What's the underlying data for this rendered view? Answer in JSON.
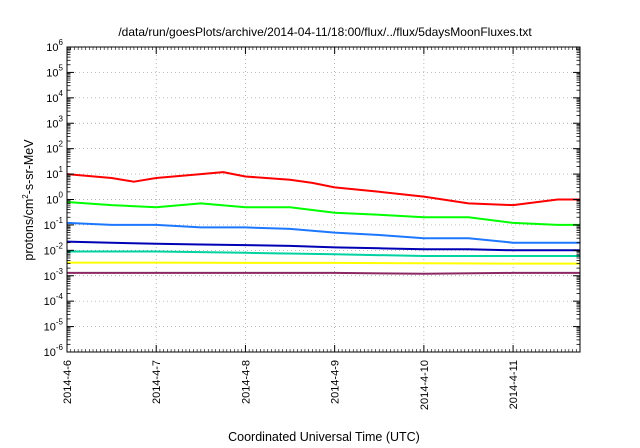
{
  "chart_data": {
    "type": "line",
    "title": "/data/run/goesPlots/archive/2014-04-11/18:00/flux/../flux/5daysMoonFluxes.txt",
    "xlabel": "Coordinated Universal Time (UTC)",
    "ylabel": {
      "base": "protons/cm",
      "sup": "2",
      "tail": "-s-sr-MeV"
    },
    "y_scale": "log",
    "ylim": [
      1e-06,
      1000000.0
    ],
    "y_ticks": [
      {
        "value": -6,
        "label_base": "10",
        "label_exp": "-6"
      },
      {
        "value": -5,
        "label_base": "10",
        "label_exp": "-5"
      },
      {
        "value": -4,
        "label_base": "10",
        "label_exp": "-4"
      },
      {
        "value": -3,
        "label_base": "10",
        "label_exp": "-3"
      },
      {
        "value": -2,
        "label_base": "10",
        "label_exp": "-2"
      },
      {
        "value": -1,
        "label_base": "10",
        "label_exp": "-1"
      },
      {
        "value": 0,
        "label_base": "10",
        "label_exp": "0"
      },
      {
        "value": 1,
        "label_base": "10",
        "label_exp": "1"
      },
      {
        "value": 2,
        "label_base": "10",
        "label_exp": "2"
      },
      {
        "value": 3,
        "label_base": "10",
        "label_exp": "3"
      },
      {
        "value": 4,
        "label_base": "10",
        "label_exp": "4"
      },
      {
        "value": 5,
        "label_base": "10",
        "label_exp": "5"
      },
      {
        "value": 6,
        "label_base": "10",
        "label_exp": "6"
      }
    ],
    "x_ticks": [
      "2014-4-6",
      "2014-4-7",
      "2014-4-8",
      "2014-4-9",
      "2014-4-10",
      "2014-4-11"
    ],
    "x_range": [
      "2014-04-06T00:00",
      "2014-04-11T18:00"
    ],
    "grid": true,
    "legend": "none",
    "series": [
      {
        "color": "#ff0000",
        "x": [
          "2014-04-06T00:00",
          "2014-04-06T12:00",
          "2014-04-06T18:00",
          "2014-04-07T00:00",
          "2014-04-07T12:00",
          "2014-04-07T18:00",
          "2014-04-08T00:00",
          "2014-04-08T12:00",
          "2014-04-08T18:00",
          "2014-04-09T00:00",
          "2014-04-09T12:00",
          "2014-04-10T00:00",
          "2014-04-10T12:00",
          "2014-04-11T00:00",
          "2014-04-11T12:00",
          "2014-04-11T18:00"
        ],
        "values": [
          10,
          7,
          5,
          7,
          10,
          12,
          8,
          6,
          4.5,
          3,
          2,
          1.3,
          0.7,
          0.6,
          1.0,
          1.0
        ]
      },
      {
        "color": "#00ff00",
        "x": [
          "2014-04-06T00:00",
          "2014-04-06T12:00",
          "2014-04-07T00:00",
          "2014-04-07T12:00",
          "2014-04-08T00:00",
          "2014-04-08T12:00",
          "2014-04-09T00:00",
          "2014-04-09T12:00",
          "2014-04-10T00:00",
          "2014-04-10T12:00",
          "2014-04-11T00:00",
          "2014-04-11T12:00",
          "2014-04-11T18:00"
        ],
        "values": [
          0.8,
          0.6,
          0.5,
          0.7,
          0.5,
          0.5,
          0.3,
          0.25,
          0.2,
          0.2,
          0.12,
          0.1,
          0.1
        ]
      },
      {
        "color": "#1e78ff",
        "x": [
          "2014-04-06T00:00",
          "2014-04-06T12:00",
          "2014-04-07T00:00",
          "2014-04-07T12:00",
          "2014-04-08T00:00",
          "2014-04-08T12:00",
          "2014-04-09T00:00",
          "2014-04-09T12:00",
          "2014-04-10T00:00",
          "2014-04-10T12:00",
          "2014-04-11T00:00",
          "2014-04-11T12:00",
          "2014-04-11T18:00"
        ],
        "values": [
          0.12,
          0.1,
          0.1,
          0.08,
          0.08,
          0.07,
          0.05,
          0.04,
          0.03,
          0.03,
          0.02,
          0.02,
          0.02
        ]
      },
      {
        "color": "#0000b4",
        "x": [
          "2014-04-06T00:00",
          "2014-04-06T12:00",
          "2014-04-07T00:00",
          "2014-04-07T12:00",
          "2014-04-08T00:00",
          "2014-04-08T12:00",
          "2014-04-09T00:00",
          "2014-04-09T12:00",
          "2014-04-10T00:00",
          "2014-04-10T12:00",
          "2014-04-11T00:00",
          "2014-04-11T12:00",
          "2014-04-11T18:00"
        ],
        "values": [
          0.022,
          0.02,
          0.018,
          0.017,
          0.016,
          0.015,
          0.013,
          0.012,
          0.011,
          0.011,
          0.01,
          0.01,
          0.01
        ]
      },
      {
        "color": "#00d2a0",
        "x": [
          "2014-04-06T00:00",
          "2014-04-07T00:00",
          "2014-04-08T00:00",
          "2014-04-09T00:00",
          "2014-04-10T00:00",
          "2014-04-11T00:00",
          "2014-04-11T18:00"
        ],
        "values": [
          0.009,
          0.009,
          0.008,
          0.007,
          0.006,
          0.006,
          0.006
        ]
      },
      {
        "color": "#ffff00",
        "x": [
          "2014-04-06T00:00",
          "2014-04-07T00:00",
          "2014-04-08T00:00",
          "2014-04-09T00:00",
          "2014-04-10T00:00",
          "2014-04-11T00:00",
          "2014-04-11T18:00"
        ],
        "values": [
          0.0033,
          0.0033,
          0.0032,
          0.0032,
          0.0031,
          0.003,
          0.003
        ]
      },
      {
        "color": "#8c2864",
        "x": [
          "2014-04-06T00:00",
          "2014-04-07T00:00",
          "2014-04-08T00:00",
          "2014-04-09T00:00",
          "2014-04-10T00:00",
          "2014-04-11T00:00",
          "2014-04-11T18:00"
        ],
        "values": [
          0.0013,
          0.0013,
          0.0013,
          0.0013,
          0.0012,
          0.0013,
          0.0013
        ]
      }
    ]
  }
}
